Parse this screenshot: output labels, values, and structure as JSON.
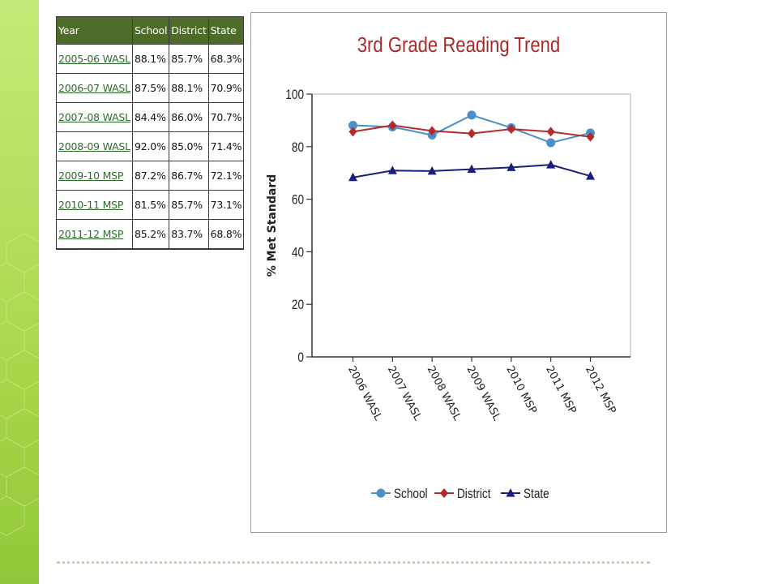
{
  "table": {
    "headers": [
      "Year",
      "School",
      "District",
      "State"
    ],
    "rows": [
      {
        "year": "2005-06 WASL",
        "school": "88.1%",
        "district": "85.7%",
        "state": "68.3%"
      },
      {
        "year": "2006-07 WASL",
        "school": "87.5%",
        "district": "88.1%",
        "state": "70.9%"
      },
      {
        "year": "2007-08 WASL",
        "school": "84.4%",
        "district": "86.0%",
        "state": "70.7%"
      },
      {
        "year": "2008-09 WASL",
        "school": "92.0%",
        "district": "85.0%",
        "state": "71.4%"
      },
      {
        "year": "2009-10 MSP",
        "school": "87.2%",
        "district": "86.7%",
        "state": "72.1%"
      },
      {
        "year": "2010-11 MSP",
        "school": "81.5%",
        "district": "85.7%",
        "state": "73.1%"
      },
      {
        "year": "2011-12 MSP",
        "school": "85.2%",
        "district": "83.7%",
        "state": "68.8%"
      }
    ]
  },
  "chart_data": {
    "type": "line",
    "title": "3rd Grade Reading Trend",
    "xlabel": "",
    "ylabel": "% Met Standard",
    "ylim": [
      0,
      100
    ],
    "yticks": [
      0,
      20,
      40,
      60,
      80,
      100
    ],
    "grid": false,
    "legend_position": "bottom",
    "categories": [
      "2006 WASL",
      "2007 WASL",
      "2008 WASL",
      "2009 WASL",
      "2010 MSP",
      "2011 MSP",
      "2012 MSP"
    ],
    "series": [
      {
        "name": "School",
        "values": [
          88.1,
          87.5,
          84.4,
          92.0,
          87.2,
          81.5,
          85.2
        ],
        "color": "#4a90c8",
        "marker": "circle"
      },
      {
        "name": "District",
        "values": [
          85.7,
          88.1,
          86.0,
          85.0,
          86.7,
          85.7,
          83.7
        ],
        "color": "#b52a2a",
        "marker": "diamond"
      },
      {
        "name": "State",
        "values": [
          68.3,
          70.9,
          70.7,
          71.4,
          72.1,
          73.1,
          68.8
        ],
        "color": "#1a1f7a",
        "marker": "triangle"
      }
    ]
  },
  "colors": {
    "title": "#a82a2a",
    "table_header": "#4f6b2a",
    "link": "#2e6b2e",
    "band": "#b5dd5a"
  }
}
